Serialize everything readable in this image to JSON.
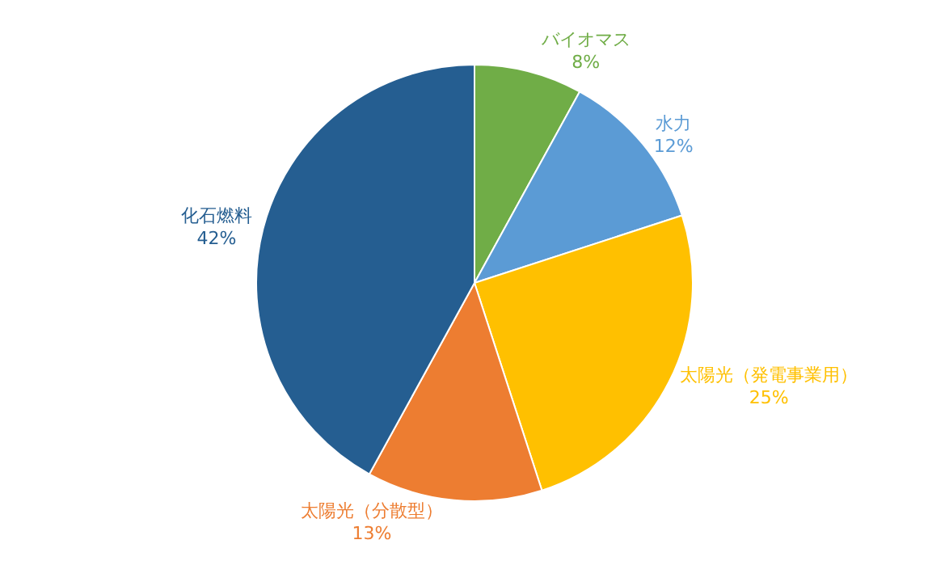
{
  "chart_data": {
    "type": "pie",
    "categories": [
      "バイオマス",
      "水力",
      "太陽光（発電事業用）",
      "太陽光（分散型）",
      "化石燃料"
    ],
    "values": [
      8,
      12,
      25,
      13,
      42
    ],
    "value_labels": [
      "8%",
      "12%",
      "25%",
      "13%",
      "42%"
    ],
    "colors": [
      "#70ad47",
      "#5b9bd5",
      "#ffc000",
      "#ed7d31",
      "#255e91"
    ],
    "legend": false
  }
}
